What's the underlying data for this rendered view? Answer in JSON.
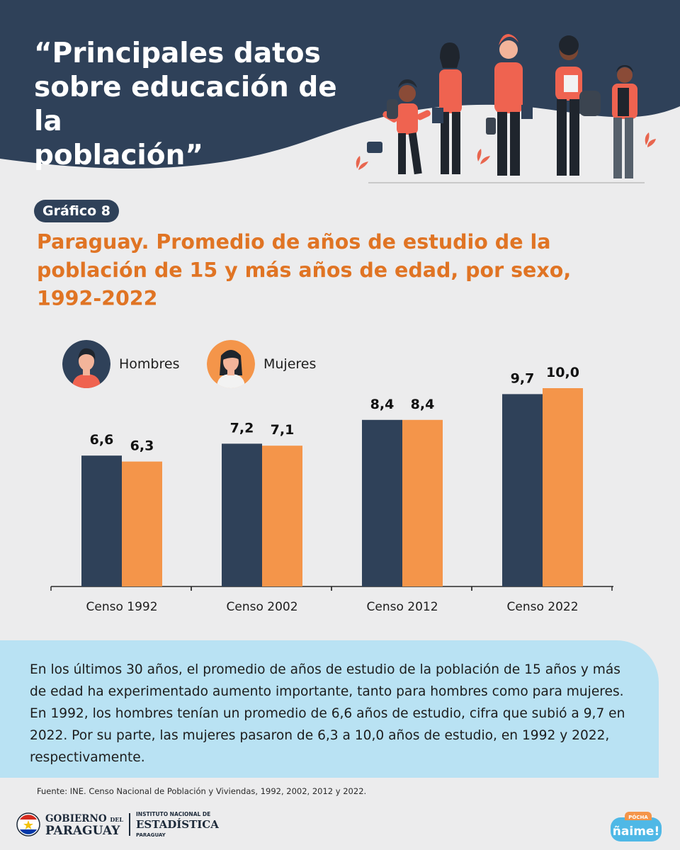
{
  "header": {
    "title": "“Principales datos\nsobre educación de la\npoblación”"
  },
  "badge": "Gráfico 8",
  "chart_title": "Paraguay. Promedio de años de estudio de la\npoblación de 15 y más años de edad, por sexo,\n1992-2022",
  "colors": {
    "navy": "#2f4159",
    "orange": "#f4954a",
    "title_orange": "#e07424",
    "note_bg": "#b9e2f3",
    "page_bg": "#ececed"
  },
  "legend": {
    "men": {
      "label": "Hombres",
      "icon": "boy-avatar-icon"
    },
    "women": {
      "label": "Mujeres",
      "icon": "girl-avatar-icon"
    }
  },
  "chart_data": {
    "type": "bar",
    "categories": [
      "Censo 1992",
      "Censo 2002",
      "Censo 2012",
      "Censo 2022"
    ],
    "series": [
      {
        "name": "Hombres",
        "color": "#2f4159",
        "values": [
          6.6,
          7.2,
          8.4,
          9.7
        ],
        "labels": [
          "6,6",
          "7,2",
          "8,4",
          "9,7"
        ]
      },
      {
        "name": "Mujeres",
        "color": "#f4954a",
        "values": [
          6.3,
          7.1,
          8.4,
          10.0
        ],
        "labels": [
          "6,3",
          "7,1",
          "8,4",
          "10,0"
        ]
      }
    ],
    "ylim": [
      0,
      10
    ],
    "grid": false,
    "legend_position": "top-left"
  },
  "note": "En los últimos 30 años, el promedio de años de estudio de la población de 15 años y más de edad ha experimentado aumento importante, tanto para hombres como para mujeres. En 1992, los hombres tenían un promedio de 6,6 años de estudio, cifra que subió a 9,7 en 2022. Por su parte, las mujeres pasaron de 6,3 a 10,0 años de estudio, en 1992 y 2022, respectivamente.",
  "source": "Fuente: INE. Censo Nacional de Población y Viviendas, 1992, 2002, 2012 y 2022.",
  "footer": {
    "gov_line1": "GOBIERNO",
    "gov_del": "DEL",
    "gov_line2": "PARAGUAY",
    "ine_line1": "INSTITUTO NACIONAL DE",
    "ine_line2": "ESTADÍSTICA",
    "ine_line3": "PARAGUAY",
    "brand_small": "PÓCHA",
    "brand_main": "ñaime!"
  }
}
